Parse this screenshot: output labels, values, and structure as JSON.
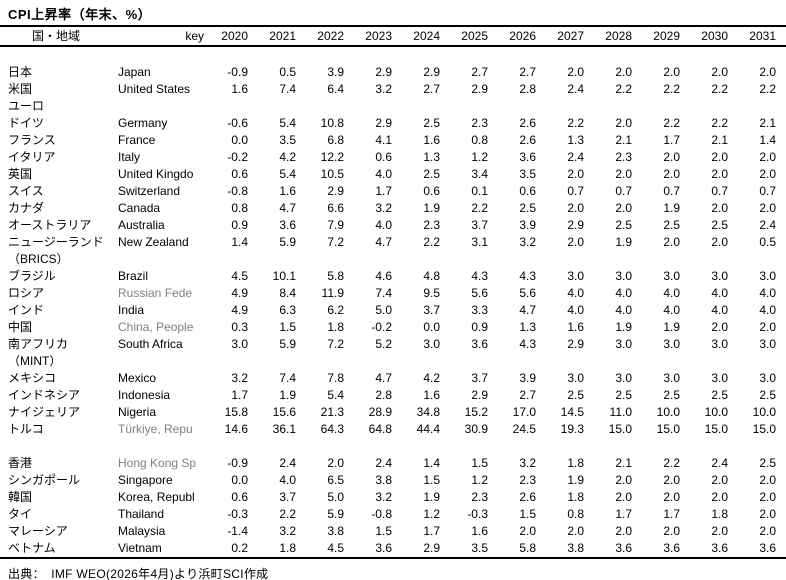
{
  "colors": {
    "background": "#ffffff",
    "text": "#000000",
    "muted_key_text": "#808080",
    "rule": "#000000"
  },
  "footer": {
    "source": "出典：　IMF WEO(2026年4月)より浜町SCI作成"
  },
  "chart_data": {
    "type": "table",
    "title": "CPI上昇率（年末、%）",
    "unit": "%",
    "source": "出典：　IMF WEO(2026年4月)より浜町SCI作成",
    "header": {
      "region": "国・地域",
      "key": "key",
      "years": [
        "2020",
        "2021",
        "2022",
        "2023",
        "2024",
        "2025",
        "2026",
        "2027",
        "2028",
        "2029",
        "2030",
        "2031"
      ]
    },
    "rows": [
      {
        "jp": "",
        "key": "",
        "muted": false,
        "values": []
      },
      {
        "jp": "日本",
        "key": "Japan",
        "muted": false,
        "values": [
          "-0.9",
          "0.5",
          "3.9",
          "2.9",
          "2.9",
          "2.7",
          "2.7",
          "2.0",
          "2.0",
          "2.0",
          "2.0",
          "2.0"
        ]
      },
      {
        "jp": "米国",
        "key": "United States",
        "muted": false,
        "values": [
          "1.6",
          "7.4",
          "6.4",
          "3.2",
          "2.7",
          "2.9",
          "2.8",
          "2.4",
          "2.2",
          "2.2",
          "2.2",
          "2.2"
        ]
      },
      {
        "jp": "ユーロ",
        "key": "",
        "muted": false,
        "values": []
      },
      {
        "jp": "ドイツ",
        "key": "Germany",
        "muted": false,
        "values": [
          "-0.6",
          "5.4",
          "10.8",
          "2.9",
          "2.5",
          "2.3",
          "2.6",
          "2.2",
          "2.0",
          "2.2",
          "2.2",
          "2.1"
        ]
      },
      {
        "jp": "フランス",
        "key": "France",
        "muted": false,
        "values": [
          "0.0",
          "3.5",
          "6.8",
          "4.1",
          "1.6",
          "0.8",
          "2.6",
          "1.3",
          "2.1",
          "1.7",
          "2.1",
          "1.4"
        ]
      },
      {
        "jp": "イタリア",
        "key": "Italy",
        "muted": false,
        "values": [
          "-0.2",
          "4.2",
          "12.2",
          "0.6",
          "1.3",
          "1.2",
          "3.6",
          "2.4",
          "2.3",
          "2.0",
          "2.0",
          "2.0"
        ]
      },
      {
        "jp": "英国",
        "key": "United Kingdo",
        "muted": false,
        "values": [
          "0.6",
          "5.4",
          "10.5",
          "4.0",
          "2.5",
          "3.4",
          "3.5",
          "2.0",
          "2.0",
          "2.0",
          "2.0",
          "2.0"
        ]
      },
      {
        "jp": "スイス",
        "key": "Switzerland",
        "muted": false,
        "values": [
          "-0.8",
          "1.6",
          "2.9",
          "1.7",
          "0.6",
          "0.1",
          "0.6",
          "0.7",
          "0.7",
          "0.7",
          "0.7",
          "0.7"
        ]
      },
      {
        "jp": "カナダ",
        "key": "Canada",
        "muted": false,
        "values": [
          "0.8",
          "4.7",
          "6.6",
          "3.2",
          "1.9",
          "2.2",
          "2.5",
          "2.0",
          "2.0",
          "1.9",
          "2.0",
          "2.0"
        ]
      },
      {
        "jp": "オーストラリア",
        "key": "Australia",
        "muted": false,
        "values": [
          "0.9",
          "3.6",
          "7.9",
          "4.0",
          "2.3",
          "3.7",
          "3.9",
          "2.9",
          "2.5",
          "2.5",
          "2.5",
          "2.4"
        ]
      },
      {
        "jp": "ニュージーランド",
        "key": "New Zealand",
        "muted": false,
        "values": [
          "1.4",
          "5.9",
          "7.2",
          "4.7",
          "2.2",
          "3.1",
          "3.2",
          "2.0",
          "1.9",
          "2.0",
          "2.0",
          "0.5"
        ]
      },
      {
        "jp": "（BRICS）",
        "key": "",
        "muted": false,
        "values": []
      },
      {
        "jp": "ブラジル",
        "key": "Brazil",
        "muted": false,
        "values": [
          "4.5",
          "10.1",
          "5.8",
          "4.6",
          "4.8",
          "4.3",
          "4.3",
          "3.0",
          "3.0",
          "3.0",
          "3.0",
          "3.0"
        ]
      },
      {
        "jp": "ロシア",
        "key": "Russian Fede",
        "muted": true,
        "values": [
          "4.9",
          "8.4",
          "11.9",
          "7.4",
          "9.5",
          "5.6",
          "5.6",
          "4.0",
          "4.0",
          "4.0",
          "4.0",
          "4.0"
        ]
      },
      {
        "jp": "インド",
        "key": "India",
        "muted": false,
        "values": [
          "4.9",
          "6.3",
          "6.2",
          "5.0",
          "3.7",
          "3.3",
          "4.7",
          "4.0",
          "4.0",
          "4.0",
          "4.0",
          "4.0"
        ]
      },
      {
        "jp": "中国",
        "key": "China, People",
        "muted": true,
        "values": [
          "0.3",
          "1.5",
          "1.8",
          "-0.2",
          "0.0",
          "0.9",
          "1.3",
          "1.6",
          "1.9",
          "1.9",
          "2.0",
          "2.0"
        ]
      },
      {
        "jp": "南アフリカ",
        "key": "South Africa",
        "muted": false,
        "values": [
          "3.0",
          "5.9",
          "7.2",
          "5.2",
          "3.0",
          "3.6",
          "4.3",
          "2.9",
          "3.0",
          "3.0",
          "3.0",
          "3.0"
        ]
      },
      {
        "jp": "（MINT）",
        "key": "",
        "muted": false,
        "values": []
      },
      {
        "jp": "メキシコ",
        "key": "Mexico",
        "muted": false,
        "values": [
          "3.2",
          "7.4",
          "7.8",
          "4.7",
          "4.2",
          "3.7",
          "3.9",
          "3.0",
          "3.0",
          "3.0",
          "3.0",
          "3.0"
        ]
      },
      {
        "jp": "インドネシア",
        "key": "Indonesia",
        "muted": false,
        "values": [
          "1.7",
          "1.9",
          "5.4",
          "2.8",
          "1.6",
          "2.9",
          "2.7",
          "2.5",
          "2.5",
          "2.5",
          "2.5",
          "2.5"
        ]
      },
      {
        "jp": "ナイジェリア",
        "key": "Nigeria",
        "muted": false,
        "values": [
          "15.8",
          "15.6",
          "21.3",
          "28.9",
          "34.8",
          "15.2",
          "17.0",
          "14.5",
          "11.0",
          "10.0",
          "10.0",
          "10.0"
        ]
      },
      {
        "jp": "トルコ",
        "key": "Türkiye, Repu",
        "muted": true,
        "values": [
          "14.6",
          "36.1",
          "64.3",
          "64.8",
          "44.4",
          "30.9",
          "24.5",
          "19.3",
          "15.0",
          "15.0",
          "15.0",
          "15.0"
        ]
      },
      {
        "jp": "",
        "key": "",
        "muted": false,
        "values": []
      },
      {
        "jp": "香港",
        "key": "Hong Kong Sp",
        "muted": true,
        "values": [
          "-0.9",
          "2.4",
          "2.0",
          "2.4",
          "1.4",
          "1.5",
          "3.2",
          "1.8",
          "2.1",
          "2.2",
          "2.4",
          "2.5"
        ]
      },
      {
        "jp": "シンガポール",
        "key": "Singapore",
        "muted": false,
        "values": [
          "0.0",
          "4.0",
          "6.5",
          "3.8",
          "1.5",
          "1.2",
          "2.3",
          "1.9",
          "2.0",
          "2.0",
          "2.0",
          "2.0"
        ]
      },
      {
        "jp": "韓国",
        "key": "Korea, Republ",
        "muted": false,
        "values": [
          "0.6",
          "3.7",
          "5.0",
          "3.2",
          "1.9",
          "2.3",
          "2.6",
          "1.8",
          "2.0",
          "2.0",
          "2.0",
          "2.0"
        ]
      },
      {
        "jp": "タイ",
        "key": "Thailand",
        "muted": false,
        "values": [
          "-0.3",
          "2.2",
          "5.9",
          "-0.8",
          "1.2",
          "-0.3",
          "1.5",
          "0.8",
          "1.7",
          "1.7",
          "1.8",
          "2.0"
        ]
      },
      {
        "jp": "マレーシア",
        "key": "Malaysia",
        "muted": false,
        "values": [
          "-1.4",
          "3.2",
          "3.8",
          "1.5",
          "1.7",
          "1.6",
          "2.0",
          "2.0",
          "2.0",
          "2.0",
          "2.0",
          "2.0"
        ]
      },
      {
        "jp": "ベトナム",
        "key": "Vietnam",
        "muted": false,
        "values": [
          "0.2",
          "1.8",
          "4.5",
          "3.6",
          "2.9",
          "3.5",
          "5.8",
          "3.8",
          "3.6",
          "3.6",
          "3.6",
          "3.6"
        ]
      }
    ]
  }
}
